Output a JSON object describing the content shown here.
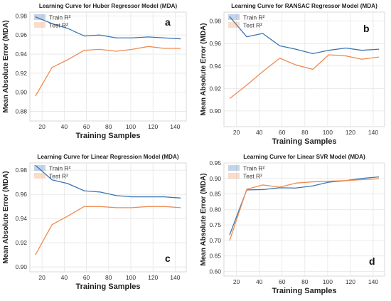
{
  "chart_data": [
    {
      "type": "line",
      "title": "Learning Curve for Huber Regressor Model (MDA)",
      "panel_label": "a",
      "xlabel": "Training Samples",
      "ylabel": "Mean Absolute Error (MDA)",
      "xlim": [
        9,
        150
      ],
      "ylim": [
        0.87,
        0.984
      ],
      "xticks": [
        20,
        40,
        60,
        80,
        100,
        120,
        140
      ],
      "yticks": [
        0.88,
        0.9,
        0.92,
        0.94,
        0.96,
        0.98
      ],
      "x": [
        14,
        29,
        43,
        58,
        72,
        87,
        101,
        116,
        130,
        145
      ],
      "series": [
        {
          "name": "Train R²",
          "color": "#3b75b4",
          "values": [
            0.979,
            0.972,
            0.967,
            0.959,
            0.96,
            0.957,
            0.957,
            0.958,
            0.957,
            0.956
          ]
        },
        {
          "name": "Test R²",
          "color": "#f08a50",
          "values": [
            0.896,
            0.926,
            0.934,
            0.944,
            0.945,
            0.943,
            0.945,
            0.948,
            0.946,
            0.946
          ]
        }
      ],
      "legend": "top-left",
      "grid": true
    },
    {
      "type": "line",
      "title": "Learning Curve for RANSAC Regressor Model (MDA)",
      "panel_label": "b",
      "xlabel": "Training Samples",
      "ylabel": "Mean Absolute Error (MDA)",
      "xlim": [
        9,
        150
      ],
      "ylim": [
        0.886,
        0.988
      ],
      "xticks": [
        20,
        40,
        60,
        80,
        100,
        120,
        140
      ],
      "yticks": [
        0.9,
        0.92,
        0.94,
        0.96,
        0.98
      ],
      "x": [
        14,
        29,
        43,
        58,
        72,
        87,
        101,
        116,
        130,
        145
      ],
      "series": [
        {
          "name": "Train R²",
          "color": "#3b75b4",
          "values": [
            0.984,
            0.966,
            0.969,
            0.958,
            0.955,
            0.951,
            0.954,
            0.956,
            0.954,
            0.955
          ]
        },
        {
          "name": "Test R²",
          "color": "#f08a50",
          "values": [
            0.911,
            0.923,
            0.935,
            0.947,
            0.941,
            0.937,
            0.95,
            0.949,
            0.946,
            0.948
          ]
        }
      ],
      "legend": "top-left",
      "grid": true
    },
    {
      "type": "line",
      "title": "Learning Curve for Linear Regression Model (MDA)",
      "panel_label": "c",
      "xlabel": "Training Samples",
      "ylabel": "Mean Absolute Error (MDA)",
      "xlim": [
        9,
        150
      ],
      "ylim": [
        0.896,
        0.986
      ],
      "xticks": [
        20,
        40,
        60,
        80,
        100,
        120,
        140
      ],
      "yticks": [
        0.9,
        0.92,
        0.94,
        0.96,
        0.98
      ],
      "x": [
        14,
        29,
        43,
        58,
        72,
        87,
        101,
        116,
        130,
        145
      ],
      "series": [
        {
          "name": "Train R²",
          "color": "#3b75b4",
          "values": [
            0.984,
            0.972,
            0.969,
            0.963,
            0.962,
            0.959,
            0.958,
            0.958,
            0.958,
            0.957
          ]
        },
        {
          "name": "Test R²",
          "color": "#f08a50",
          "values": [
            0.91,
            0.935,
            0.942,
            0.95,
            0.95,
            0.949,
            0.949,
            0.95,
            0.95,
            0.949
          ]
        }
      ],
      "legend": "top-left",
      "grid": true
    },
    {
      "type": "line",
      "title": "Learning Curve for Linear SVR Model (MDA)",
      "panel_label": "d",
      "xlabel": "Training Samples",
      "ylabel": "Mean Absolute Error (MDA)",
      "xlim": [
        9,
        150
      ],
      "ylim": [
        0.585,
        0.95
      ],
      "xticks": [
        20,
        40,
        60,
        80,
        100,
        120,
        140
      ],
      "yticks": [
        0.6,
        0.65,
        0.7,
        0.75,
        0.8,
        0.85,
        0.9,
        0.95
      ],
      "x": [
        14,
        29,
        43,
        58,
        72,
        87,
        101,
        116,
        130,
        145
      ],
      "series": [
        {
          "name": "Train R²",
          "color": "#3b75b4",
          "values": [
            0.718,
            0.863,
            0.864,
            0.87,
            0.869,
            0.876,
            0.888,
            0.893,
            0.9,
            0.905
          ]
        },
        {
          "name": "Test R²",
          "color": "#f08a50",
          "values": [
            0.7,
            0.865,
            0.879,
            0.872,
            0.885,
            0.889,
            0.891,
            0.893,
            0.896,
            0.899
          ]
        }
      ],
      "legend": "top-left",
      "grid": true
    }
  ]
}
